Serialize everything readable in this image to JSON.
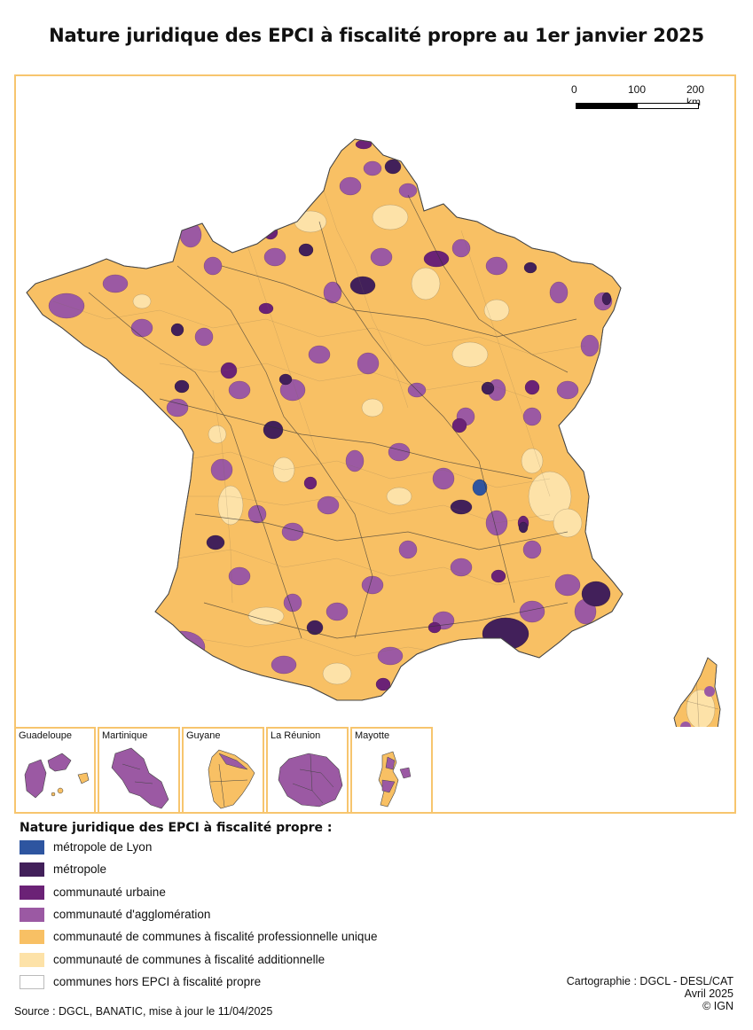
{
  "title": "Nature juridique des EPCI à fiscalité propre au 1er janvier 2025",
  "scale_bar": {
    "labels": [
      "0",
      "100",
      "200 km"
    ]
  },
  "insets": [
    {
      "name": "Guadeloupe"
    },
    {
      "name": "Martinique"
    },
    {
      "name": "Guyane"
    },
    {
      "name": "La Réunion"
    },
    {
      "name": "Mayotte"
    }
  ],
  "legend": {
    "title": "Nature juridique des EPCI à fiscalité propre :",
    "items": [
      {
        "label": "métropole de Lyon",
        "color": "#2e55a0"
      },
      {
        "label": "métropole",
        "color": "#42205a"
      },
      {
        "label": "communauté urbaine",
        "color": "#6b2276"
      },
      {
        "label": "communauté d'agglomération",
        "color": "#9b59a3"
      },
      {
        "label": "communauté de communes à fiscalité professionnelle unique",
        "color": "#f8c064"
      },
      {
        "label": "communauté de communes à fiscalité additionnelle",
        "color": "#fde2a8"
      },
      {
        "label": "communes hors EPCI à fiscalité propre",
        "color": "#ffffff"
      }
    ]
  },
  "credits": [
    "Cartographie : DGCL - DESL/CAT",
    "Avril 2025",
    "© IGN"
  ],
  "source": "Source : DGCL, BANATIC, mise à jour le 11/04/2025"
}
